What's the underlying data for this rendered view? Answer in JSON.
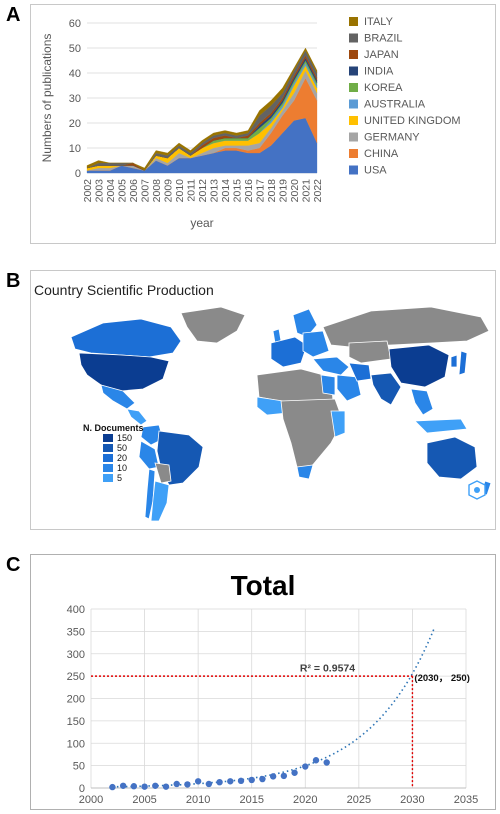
{
  "panels": {
    "a": "A",
    "b": "B",
    "c": "C"
  },
  "chart_data": [
    {
      "type": "area",
      "stacked": true,
      "title": "",
      "xlabel": "year",
      "ylabel": "Numbers of publications",
      "ylim": [
        0,
        60
      ],
      "yticks": [
        "0",
        "10",
        "20",
        "30",
        "40",
        "50",
        "60"
      ],
      "categories": [
        "2002",
        "2003",
        "2004",
        "2005",
        "2006",
        "2007",
        "2008",
        "2009",
        "2010",
        "2011",
        "2012",
        "2013",
        "2014",
        "2015",
        "2016",
        "2017",
        "2018",
        "2019",
        "2020",
        "2021",
        "2022"
      ],
      "grid": true,
      "legend": "right",
      "series": [
        {
          "name": "USA",
          "color": "#4472c4",
          "values": [
            1,
            1,
            1,
            3,
            2,
            1,
            5,
            3,
            6,
            6,
            7,
            8,
            9,
            9,
            8,
            8,
            11,
            16,
            21,
            22,
            12
          ]
        },
        {
          "name": "CHINA",
          "color": "#ed7d31",
          "values": [
            0,
            0,
            0,
            0,
            0,
            0,
            0,
            0,
            0,
            0,
            0,
            0,
            1,
            1,
            1,
            2,
            5,
            7,
            8,
            16,
            17
          ]
        },
        {
          "name": "GERMANY",
          "color": "#a5a5a5",
          "values": [
            0,
            1,
            1,
            0,
            1,
            0,
            1,
            1,
            2,
            0,
            1,
            2,
            1,
            1,
            2,
            2,
            2,
            2,
            3,
            3,
            3
          ]
        },
        {
          "name": "UNITED KINGDOM",
          "color": "#ffc000",
          "values": [
            1,
            1,
            1,
            0,
            0,
            0,
            1,
            2,
            2,
            1,
            2,
            2,
            2,
            2,
            2,
            4,
            2,
            1,
            3,
            2,
            2
          ]
        },
        {
          "name": "AUSTRALIA",
          "color": "#5b9bd5",
          "values": [
            0,
            0,
            0,
            0,
            0,
            0,
            0,
            0,
            0,
            0,
            0,
            0,
            0,
            0,
            0,
            0,
            1,
            1,
            1,
            1,
            1
          ]
        },
        {
          "name": "KOREA",
          "color": "#70ad47",
          "values": [
            0,
            0,
            0,
            0,
            0,
            0,
            0,
            0,
            0,
            0,
            0,
            1,
            1,
            1,
            1,
            2,
            1,
            1,
            1,
            1,
            1
          ]
        },
        {
          "name": "INDIA",
          "color": "#264478",
          "values": [
            0,
            0,
            0,
            0,
            0,
            0,
            0,
            0,
            0,
            0,
            0,
            0,
            0,
            0,
            0,
            1,
            1,
            1,
            1,
            1,
            1
          ]
        },
        {
          "name": "JAPAN",
          "color": "#9e480e",
          "values": [
            0,
            0,
            0,
            0,
            1,
            0,
            0,
            0,
            0,
            0,
            1,
            1,
            1,
            0,
            1,
            1,
            1,
            1,
            1,
            1,
            1
          ]
        },
        {
          "name": "BRAZIL",
          "color": "#636363",
          "values": [
            0,
            1,
            1,
            1,
            0,
            0,
            1,
            1,
            1,
            1,
            1,
            1,
            1,
            1,
            1,
            3,
            3,
            2,
            2,
            2,
            2
          ]
        },
        {
          "name": "ITALY",
          "color": "#997300",
          "values": [
            1,
            1,
            0,
            0,
            0,
            1,
            1,
            1,
            1,
            1,
            1,
            1,
            1,
            1,
            1,
            2,
            2,
            2,
            1,
            1,
            1
          ]
        }
      ]
    },
    {
      "type": "map",
      "title": "Country Scientific Production",
      "legend_title": "N. Documents",
      "legend": [
        {
          "label": "150",
          "color": "#0b3d91"
        },
        {
          "label": "50",
          "color": "#1558b3"
        },
        {
          "label": "20",
          "color": "#1c6fd6"
        },
        {
          "label": "10",
          "color": "#2a86e8"
        },
        {
          "label": "5",
          "color": "#3fa0f7"
        }
      ],
      "no_data_color": "#8a8a8a"
    },
    {
      "type": "scatter",
      "title": "Total",
      "xlim": [
        2000,
        2035
      ],
      "ylim": [
        0,
        400
      ],
      "xticks": [
        "2000",
        "2005",
        "2010",
        "2015",
        "2020",
        "2025",
        "2030",
        "2035"
      ],
      "yticks": [
        "0",
        "50",
        "100",
        "150",
        "200",
        "250",
        "300",
        "350",
        "400"
      ],
      "points": [
        {
          "x": 2002,
          "y": 2
        },
        {
          "x": 2003,
          "y": 5
        },
        {
          "x": 2004,
          "y": 4
        },
        {
          "x": 2005,
          "y": 3
        },
        {
          "x": 2006,
          "y": 5
        },
        {
          "x": 2007,
          "y": 3
        },
        {
          "x": 2008,
          "y": 9
        },
        {
          "x": 2009,
          "y": 8
        },
        {
          "x": 2010,
          "y": 15
        },
        {
          "x": 2011,
          "y": 9
        },
        {
          "x": 2012,
          "y": 13
        },
        {
          "x": 2013,
          "y": 15
        },
        {
          "x": 2014,
          "y": 16
        },
        {
          "x": 2015,
          "y": 18
        },
        {
          "x": 2016,
          "y": 20
        },
        {
          "x": 2017,
          "y": 26
        },
        {
          "x": 2018,
          "y": 27
        },
        {
          "x": 2019,
          "y": 34
        },
        {
          "x": 2020,
          "y": 48
        },
        {
          "x": 2021,
          "y": 62
        },
        {
          "x": 2022,
          "y": 57
        }
      ],
      "trendline": "exponential",
      "trend_end": {
        "x": 2032,
        "y": 355
      },
      "r2_label": "R² = 0.9574",
      "annotation": {
        "label": "(2030， 250)",
        "x": 2030,
        "y": 250
      },
      "point_color": "#4472c4",
      "guide_color": "#e00000",
      "grid": true
    }
  ]
}
